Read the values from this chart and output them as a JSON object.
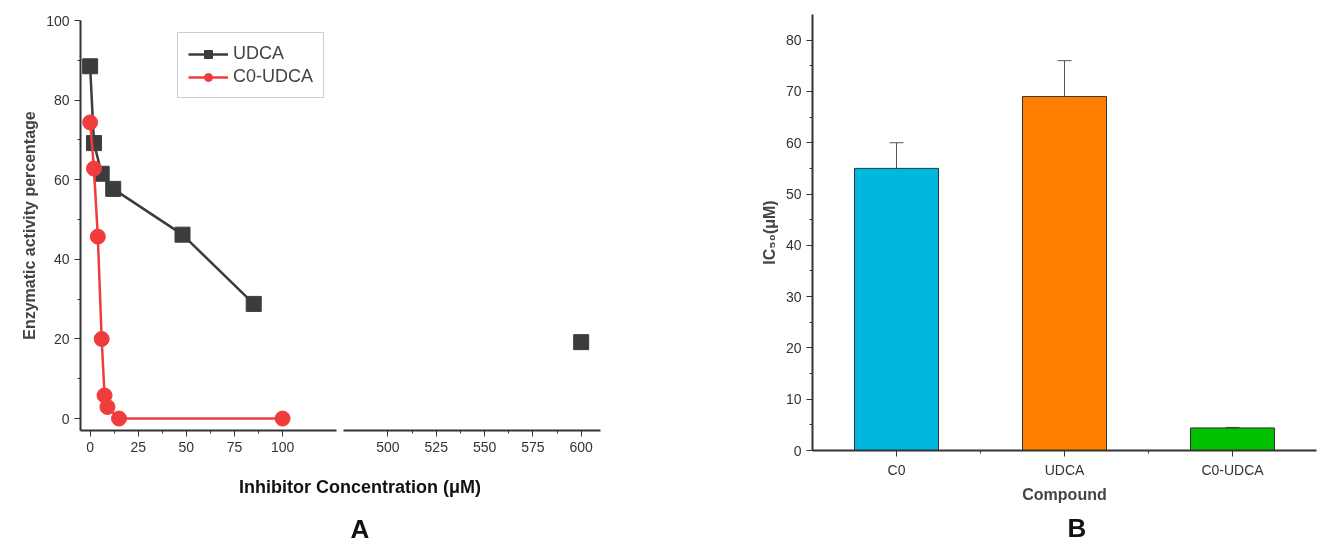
{
  "chart_data": [
    {
      "type": "line",
      "xlabel": "Inhibitor Concentration (μM)",
      "ylabel": "Enzymatic activity percentage",
      "annotations": [
        "A"
      ],
      "xlim": [
        -5,
        128
      ],
      "ylim": [
        -3,
        100
      ],
      "xticks": [
        0,
        25,
        50,
        75,
        100
      ],
      "yticks": [
        0,
        20,
        40,
        60,
        80,
        100
      ],
      "legend": "top right",
      "grid": false,
      "series": [
        {
          "name": "UDCA",
          "color": "#3c3c3c",
          "marker": "square",
          "x": [
            0,
            2,
            6,
            12,
            48,
            85
          ],
          "values": [
            88.5,
            69.2,
            61.5,
            57.7,
            46.2,
            28.8
          ]
        },
        {
          "name": "C0-UDCA",
          "color": "#f03c3c",
          "marker": "circle",
          "x": [
            0,
            2,
            4,
            6,
            7.5,
            9,
            15,
            100
          ],
          "values": [
            74.4,
            62.8,
            45.7,
            20,
            5.8,
            2.9,
            0,
            0
          ]
        }
      ]
    },
    {
      "type": "line",
      "xlim": [
        477,
        610
      ],
      "ylim": [
        -3,
        100
      ],
      "xticks": [
        500,
        525,
        550,
        575,
        600
      ],
      "tick_labels": "x",
      "grid": false,
      "series": [
        {
          "color": "#3c3c3c",
          "marker": "square",
          "x": [
            600
          ],
          "values": [
            19.2
          ]
        }
      ]
    },
    {
      "type": "bar",
      "xlabel": "Compound",
      "ylabel": "IC₅₀(μM)",
      "annotations": [
        "B"
      ],
      "categories": [
        "C0",
        "UDCA",
        "C0-UDCA"
      ],
      "values": [
        55,
        69,
        4.4
      ],
      "errors": [
        5,
        7,
        0.1
      ],
      "colors": [
        "#00b8de",
        "#ff8000",
        "#00c000"
      ],
      "ylim": [
        0,
        85
      ],
      "yticks": [
        0,
        10,
        20,
        30,
        40,
        50,
        60,
        70,
        80
      ],
      "grid": false
    }
  ]
}
